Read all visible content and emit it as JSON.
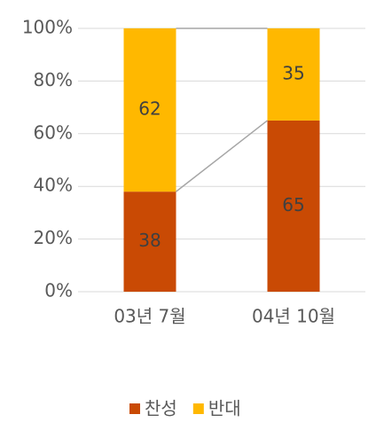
{
  "chart_data": {
    "type": "stacked_bar",
    "categories": [
      "03년 7월",
      "04년 10월"
    ],
    "series": [
      {
        "name": "찬성",
        "color": "#c94a04",
        "values": [
          38,
          65
        ]
      },
      {
        "name": "반대",
        "color": "#ffb800",
        "values": [
          62,
          35
        ]
      }
    ],
    "ylim": [
      0,
      100
    ],
    "yticks": [
      {
        "value": 0,
        "label": "0%"
      },
      {
        "value": 20,
        "label": "20%"
      },
      {
        "value": 40,
        "label": "40%"
      },
      {
        "value": 60,
        "label": "60%"
      },
      {
        "value": 80,
        "label": "80%"
      },
      {
        "value": 100,
        "label": "100%"
      }
    ],
    "grid": true,
    "legend": "bottom"
  }
}
